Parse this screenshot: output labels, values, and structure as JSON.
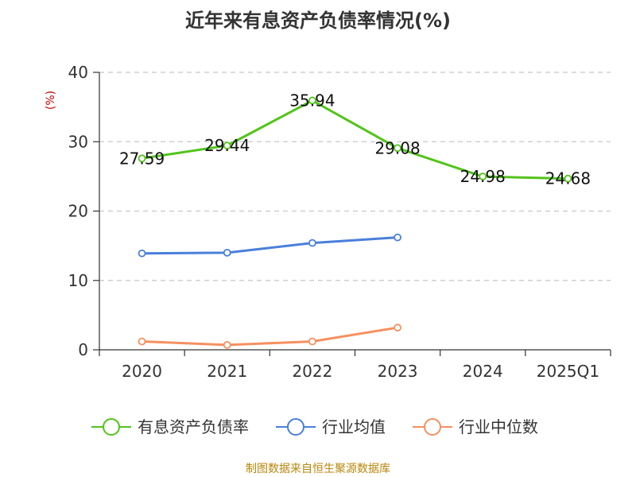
{
  "chart_data": {
    "type": "line",
    "title": "近年来有息资产负债率情况(%)",
    "ylabel": "(%)",
    "xlabel": "",
    "categories": [
      "2020",
      "2021",
      "2022",
      "2023",
      "2024",
      "2025Q1"
    ],
    "ylim": [
      0,
      40
    ],
    "yticks": [
      0,
      10,
      20,
      30,
      40
    ],
    "grid": true,
    "legend_position": "bottom",
    "series": [
      {
        "name": "有息资产负债率",
        "color": "#52c41a",
        "values": [
          27.59,
          29.44,
          35.94,
          29.08,
          24.98,
          24.68
        ],
        "labels": [
          "27.59",
          "29.44",
          "35.94",
          "29.08",
          "24.98",
          "24.68"
        ]
      },
      {
        "name": "行业均值",
        "color": "#4a7fdb",
        "values": [
          13.9,
          14.0,
          15.4,
          16.2,
          null,
          null
        ],
        "labels": []
      },
      {
        "name": "行业中位数",
        "color": "#f5905f",
        "values": [
          1.2,
          0.7,
          1.2,
          3.2,
          null,
          null
        ],
        "labels": []
      }
    ],
    "source": "制图数据来自恒生聚源数据库"
  }
}
